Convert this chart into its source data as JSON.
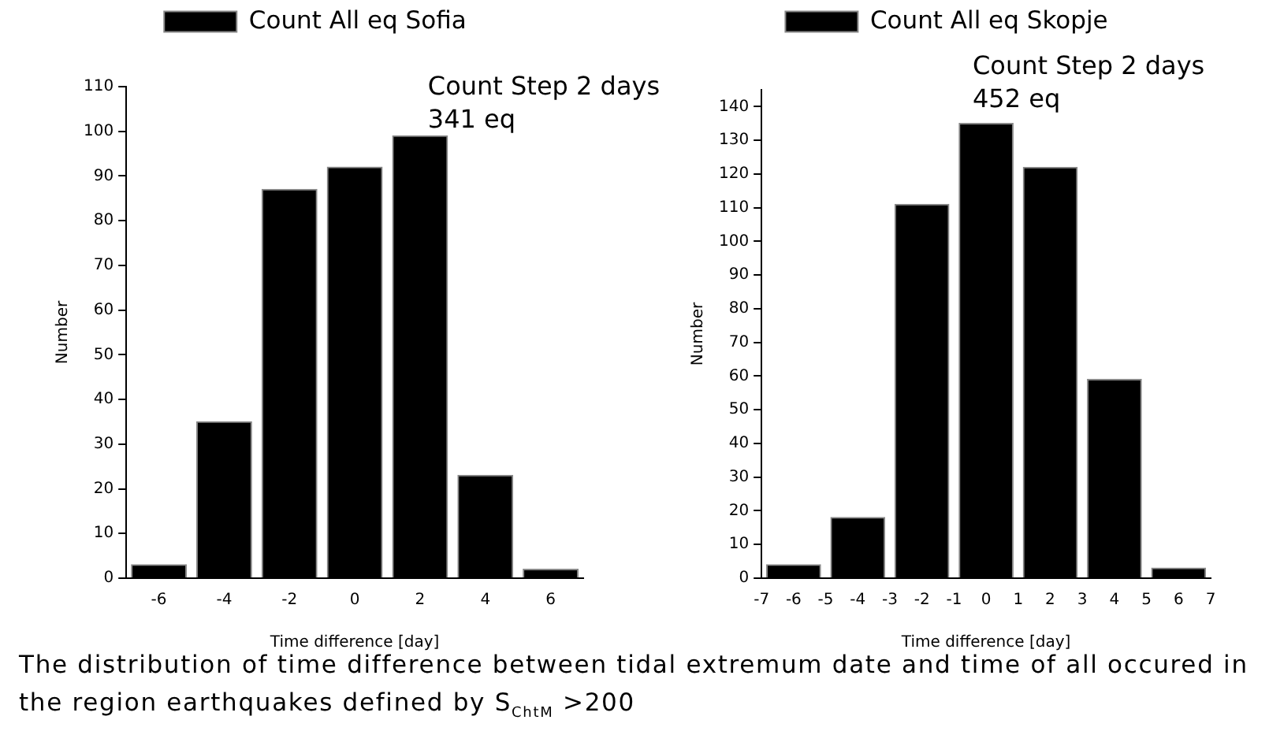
{
  "chart_data": [
    {
      "type": "histogram",
      "xlabel": "Time difference [day]",
      "ylabel": "Number",
      "bins": [
        -7,
        -5,
        -3,
        -1,
        1,
        3,
        5,
        7
      ],
      "series": [
        {
          "name": "Count All eq Sofia",
          "color": "#000000",
          "values": [
            3,
            35,
            87,
            92,
            99,
            23,
            2
          ]
        }
      ],
      "xlim": [
        -7,
        7
      ],
      "xticks": [
        -6,
        -4,
        -2,
        0,
        2,
        4,
        6
      ],
      "ylim": [
        0,
        110
      ],
      "yticks": [
        0,
        10,
        20,
        30,
        40,
        50,
        60,
        70,
        80,
        90,
        100,
        110
      ],
      "grid": false,
      "legend": "top",
      "annotations": [
        "Count Step 2 days",
        "341 eq",
        "The distribution of time difference between tidal extremum date and time of all occured in the region earthquakes defined by S$_{ChtM}$ >200"
      ]
    },
    {
      "type": "histogram",
      "xlabel": "Time difference [day]",
      "ylabel": "Number",
      "bins": [
        -7,
        -5,
        -3,
        -1,
        1,
        3,
        5,
        7
      ],
      "series": [
        {
          "name": "Count All eq Skopje",
          "color": "#000000",
          "values": [
            4,
            18,
            111,
            135,
            122,
            59,
            3
          ]
        }
      ],
      "xlim": [
        -7,
        7
      ],
      "xticks": [
        -7,
        -6,
        -5,
        -4,
        -3,
        -2,
        -1,
        0,
        1,
        2,
        3,
        4,
        5,
        6,
        7
      ],
      "ylim": [
        0,
        145
      ],
      "yticks": [
        0,
        10,
        20,
        30,
        40,
        50,
        60,
        70,
        80,
        90,
        100,
        110,
        120,
        130,
        140
      ],
      "grid": false,
      "legend": "top",
      "annotations": [
        "Count Step 2 days",
        "452 eq"
      ]
    }
  ]
}
